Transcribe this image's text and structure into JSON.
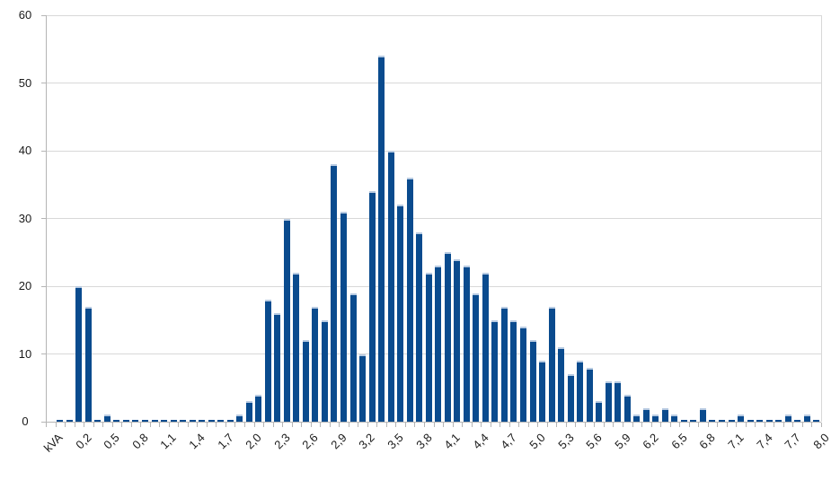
{
  "chart_data": {
    "type": "bar",
    "title": "",
    "xlabel": "kVA",
    "ylabel": "",
    "ylim": [
      0,
      60
    ],
    "grid": true,
    "legend": "none",
    "y_tick_labels": [
      "0",
      "10",
      "20",
      "30",
      "40",
      "50",
      "60"
    ],
    "y_tick_values": [
      0,
      10,
      20,
      30,
      40,
      50,
      60
    ],
    "x_labels_shown_every": 3,
    "visible_x_labels": [
      "kVA",
      "0,2",
      "0,5",
      "0,8",
      "1,1",
      "1,4",
      "1,7",
      "2,0",
      "2,3",
      "2,6",
      "2,9",
      "3,2",
      "3,5",
      "3,8",
      "4,1",
      "4,4",
      "4,7",
      "5,0",
      "5,3",
      "5,6",
      "5,9",
      "6,2",
      "6,5",
      "6,8",
      "7,1",
      "7,4",
      "7,7",
      "8,0"
    ],
    "categories": [
      "kVA",
      "0,0",
      "0,1",
      "0,2",
      "0,3",
      "0,4",
      "0,5",
      "0,6",
      "0,7",
      "0,8",
      "0,9",
      "1,0",
      "1,1",
      "1,2",
      "1,3",
      "1,4",
      "1,5",
      "1,6",
      "1,7",
      "1,8",
      "1,9",
      "2,0",
      "2,1",
      "2,2",
      "2,3",
      "2,4",
      "2,5",
      "2,6",
      "2,7",
      "2,8",
      "2,9",
      "3,0",
      "3,1",
      "3,2",
      "3,3",
      "3,4",
      "3,5",
      "3,6",
      "3,7",
      "3,8",
      "3,9",
      "4,0",
      "4,1",
      "4,2",
      "4,3",
      "4,4",
      "4,5",
      "4,6",
      "4,7",
      "4,8",
      "4,9",
      "5,0",
      "5,1",
      "5,2",
      "5,3",
      "5,4",
      "5,5",
      "5,6",
      "5,7",
      "5,8",
      "5,9",
      "6,0",
      "6,1",
      "6,2",
      "6,3",
      "6,4",
      "6,5",
      "6,6",
      "6,7",
      "6,8",
      "6,9",
      "7,0",
      "7,1",
      "7,2",
      "7,3",
      "7,4",
      "7,5",
      "7,6",
      "7,7",
      "7,8",
      "7,9",
      "8,0"
    ],
    "values": [
      null,
      0,
      0,
      20,
      17,
      0,
      1,
      0,
      0,
      0,
      0,
      0,
      0,
      0,
      0,
      0,
      0,
      0,
      0,
      0,
      1,
      3,
      4,
      18,
      16,
      30,
      22,
      12,
      17,
      15,
      38,
      31,
      19,
      10,
      34,
      54,
      40,
      32,
      36,
      28,
      22,
      23,
      25,
      24,
      23,
      19,
      22,
      15,
      17,
      15,
      14,
      12,
      9,
      17,
      11,
      7,
      9,
      8,
      3,
      6,
      6,
      4,
      1,
      2,
      1,
      2,
      1,
      0,
      0,
      2,
      0,
      0,
      0,
      1,
      0,
      0,
      0,
      0,
      1,
      0,
      1,
      0
    ],
    "colors": {
      "bar_fill": "#0a4b8e",
      "bar_top_highlight": "#b8cbe2",
      "gridline": "#d8d8d8",
      "axis_line": "#b5b5b5",
      "tick_mark": "#b5b5b5",
      "label_text": "#1a1a1a",
      "background": "#ffffff"
    }
  }
}
